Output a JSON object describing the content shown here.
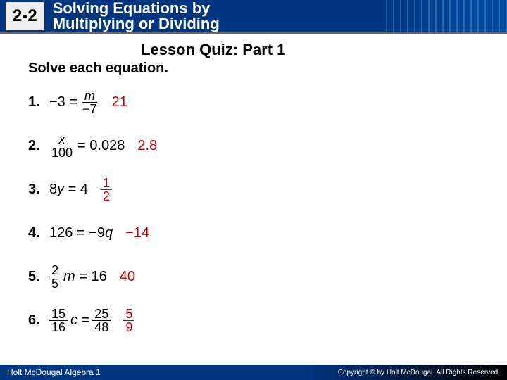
{
  "header": {
    "lesson_number": "2-2",
    "lesson_title_line1": "Solving Equations by",
    "lesson_title_line2": "Multiplying or Dividing"
  },
  "quiz": {
    "title": "Lesson Quiz: Part 1",
    "instruction": "Solve each equation."
  },
  "problems": [
    {
      "num": "1.",
      "lhs_prefix": "−3 =",
      "frac_num": "m",
      "frac_den": "−7",
      "answer": "21",
      "type": "frac_right"
    },
    {
      "num": "2.",
      "frac_num": "x",
      "frac_den": "100",
      "rhs": "= 0.028",
      "answer": "2.8",
      "type": "frac_left"
    },
    {
      "num": "3.",
      "eq": "8y = 4",
      "ans_frac_num": "1",
      "ans_frac_den": "2",
      "type": "plain_fracans"
    },
    {
      "num": "4.",
      "eq": "126 = −9q",
      "answer": "−14",
      "type": "plain"
    },
    {
      "num": "5.",
      "frac_num": "2",
      "frac_den": "5",
      "mid": "m = 16",
      "answer": "40",
      "type": "coef_frac"
    },
    {
      "num": "6.",
      "frac_num": "15",
      "frac_den": "16",
      "mid_var": "c =",
      "rhs_frac_num": "25",
      "rhs_frac_den": "48",
      "ans_frac_num": "5",
      "ans_frac_den": "9",
      "type": "double_frac"
    }
  ],
  "footer": {
    "left": "Holt McDougal Algebra 1",
    "right": "Copyright © by Holt McDougal. All Rights Reserved."
  },
  "colors": {
    "header_bg": "#003580",
    "answer_color": "#c00000",
    "text": "#000000"
  }
}
